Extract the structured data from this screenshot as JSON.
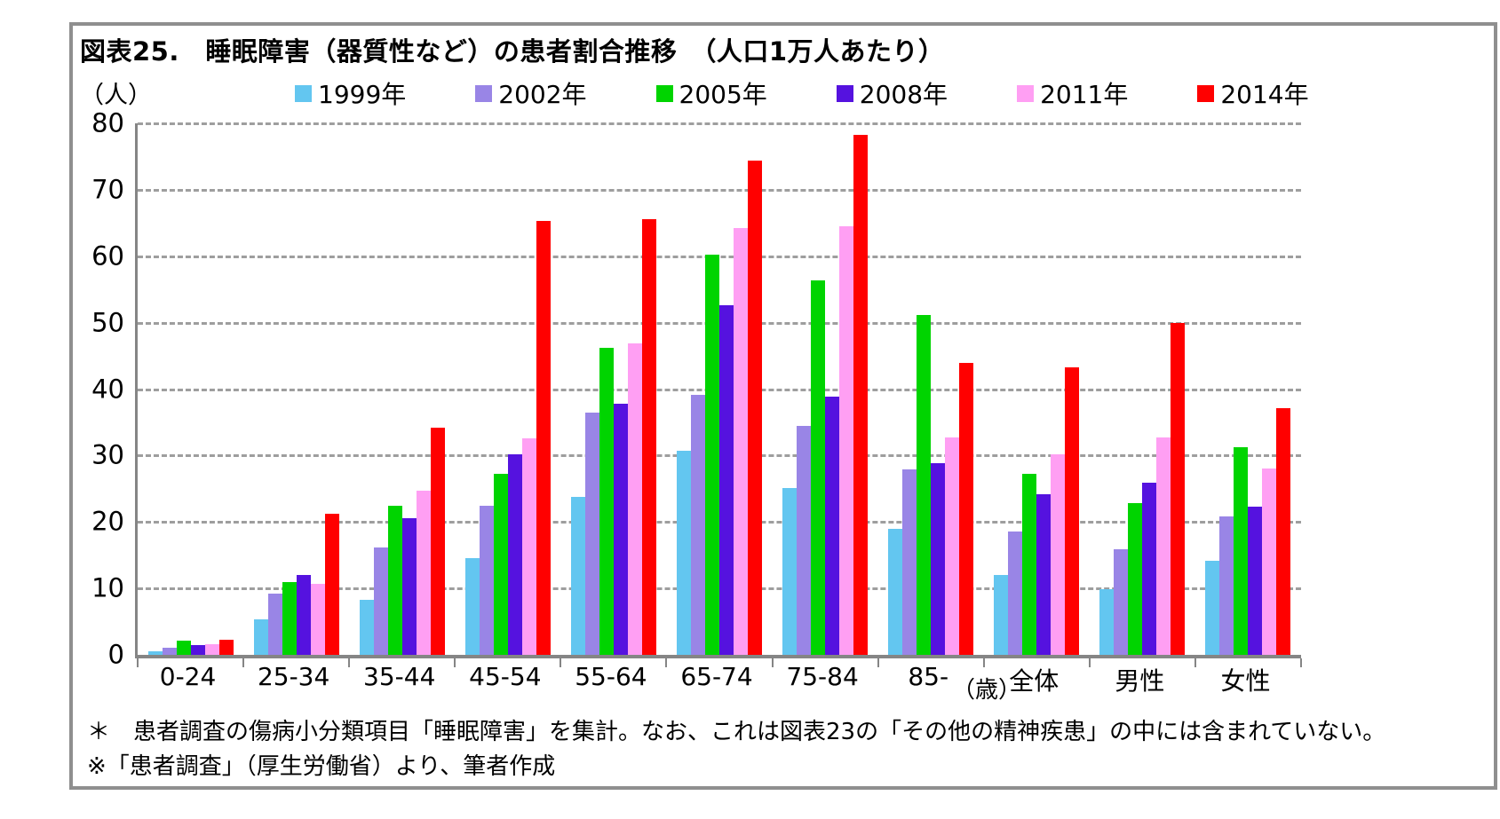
{
  "title": "図表25.　睡眠障害（器質性など）の患者割合推移　（人口1万人あたり）",
  "unit_label": "（人）",
  "age_unit_label": "（歳）",
  "footnotes": {
    "line1": "＊　患者調査の傷病小分類項目「睡眠障害」を集計。なお、これは図表23の「その他の精神疾患」の中には含まれていない。",
    "line2": "※「患者調査」（厚生労働省）より、筆者作成"
  },
  "colors": {
    "axis": "#858585",
    "gridline": "#9e9e9e",
    "border": "#8f8f8f"
  },
  "chart_data": {
    "type": "bar",
    "title": "図表25.　睡眠障害（器質性など）の患者割合推移　（人口1万人あたり）",
    "ylabel": "（人）",
    "xlabel": "（歳）",
    "ylim": [
      0,
      80
    ],
    "ytick_step": 10,
    "grid": "dashed horizontal",
    "legend_position": "top",
    "categories": [
      "0-24",
      "25-34",
      "35-44",
      "45-54",
      "55-64",
      "65-74",
      "75-84",
      "85-",
      "全体",
      "男性",
      "女性"
    ],
    "series": [
      {
        "name": "1999年",
        "color": "#63C6F0",
        "values": [
          0.5,
          5.3,
          8.3,
          14.5,
          23.8,
          30.7,
          25.1,
          19.0,
          12.0,
          9.9,
          14.2
        ]
      },
      {
        "name": "2002年",
        "color": "#9985E6",
        "values": [
          1.1,
          9.2,
          16.2,
          22.4,
          36.4,
          39.1,
          34.5,
          27.9,
          18.5,
          15.9,
          20.9
        ]
      },
      {
        "name": "2005年",
        "color": "#00D400",
        "values": [
          2.1,
          11.0,
          22.4,
          27.2,
          46.2,
          60.3,
          56.4,
          51.1,
          27.2,
          22.8,
          31.2
        ]
      },
      {
        "name": "2008年",
        "color": "#5512DF",
        "values": [
          1.5,
          12.0,
          20.6,
          30.2,
          37.8,
          52.6,
          38.9,
          28.9,
          24.2,
          25.9,
          22.3
        ]
      },
      {
        "name": "2011年",
        "color": "#FF9FF3",
        "values": [
          1.6,
          10.7,
          24.7,
          32.6,
          46.9,
          64.3,
          64.5,
          32.7,
          30.2,
          32.7,
          28.0
        ]
      },
      {
        "name": "2014年",
        "color": "#FF0000",
        "values": [
          2.3,
          21.3,
          34.2,
          65.3,
          65.6,
          74.4,
          78.2,
          44.0,
          43.3,
          50.0,
          37.1
        ]
      }
    ]
  }
}
